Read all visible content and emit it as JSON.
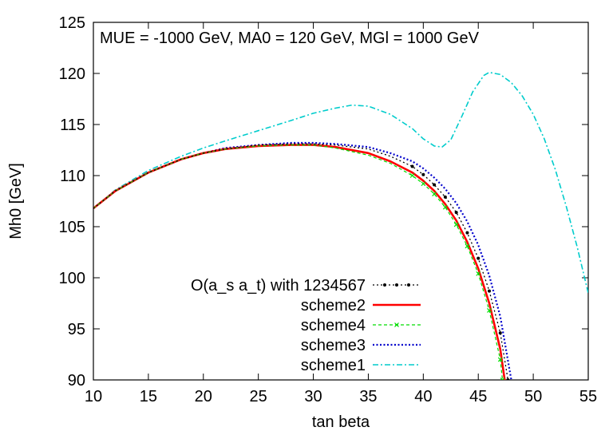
{
  "chart_data": {
    "type": "line",
    "title": "",
    "annotation": "MUE = -1000 GeV, MA0 = 120 GeV, MGl = 1000 GeV",
    "xlabel": "tan beta",
    "ylabel": "Mh0 [GeV]",
    "xlim": [
      10,
      55
    ],
    "ylim": [
      90,
      125
    ],
    "xticks": [
      10,
      15,
      20,
      25,
      30,
      35,
      40,
      45,
      50,
      55
    ],
    "yticks": [
      90,
      95,
      100,
      105,
      110,
      115,
      120,
      125
    ],
    "grid": false,
    "legend_position": "bottom-left",
    "series": [
      {
        "name": "O(a_s a_t) with 1234567",
        "color": "#000000",
        "style": "dotted-points",
        "x": [
          10,
          12,
          15,
          18,
          20,
          22,
          25,
          28,
          30,
          32,
          35,
          37,
          39,
          40,
          41,
          42,
          43,
          44,
          45,
          46,
          47,
          47.7
        ],
        "y": [
          106.8,
          108.5,
          110.3,
          111.6,
          112.2,
          112.6,
          113.0,
          113.1,
          113.1,
          113.0,
          112.6,
          111.9,
          110.9,
          110.1,
          109.1,
          107.9,
          106.4,
          104.4,
          101.9,
          98.7,
          94.6,
          90.0
        ]
      },
      {
        "name": "scheme2",
        "color": "#ff0000",
        "style": "solid",
        "x": [
          10,
          12,
          15,
          18,
          20,
          22,
          25,
          28,
          30,
          32,
          35,
          37,
          39,
          40,
          41,
          42,
          43,
          44,
          45,
          46,
          47,
          47.4
        ],
        "y": [
          106.8,
          108.5,
          110.3,
          111.6,
          112.2,
          112.6,
          112.9,
          113.0,
          113.0,
          112.8,
          112.2,
          111.4,
          110.3,
          109.5,
          108.5,
          107.2,
          105.6,
          103.5,
          100.9,
          97.5,
          93.0,
          90.0
        ]
      },
      {
        "name": "scheme4",
        "color": "#00dd00",
        "style": "dashed-points",
        "x": [
          10,
          12,
          15,
          18,
          20,
          22,
          25,
          28,
          30,
          32,
          35,
          37,
          39,
          40,
          41,
          42,
          43,
          44,
          45,
          46,
          47,
          47.2
        ],
        "y": [
          106.8,
          108.5,
          110.3,
          111.6,
          112.2,
          112.6,
          112.9,
          113.0,
          113.0,
          112.7,
          112.0,
          111.2,
          110.0,
          109.2,
          108.2,
          106.9,
          105.2,
          103.1,
          100.4,
          96.8,
          92.0,
          90.0
        ]
      },
      {
        "name": "scheme3",
        "color": "#0000cc",
        "style": "dotted",
        "x": [
          10,
          12,
          15,
          18,
          20,
          22,
          25,
          28,
          30,
          32,
          35,
          37,
          39,
          40,
          41,
          42,
          43,
          44,
          45,
          46,
          47,
          48.0
        ],
        "y": [
          106.8,
          108.5,
          110.3,
          111.6,
          112.2,
          112.7,
          113.0,
          113.2,
          113.2,
          113.1,
          112.8,
          112.2,
          111.4,
          110.7,
          109.8,
          108.7,
          107.3,
          105.5,
          103.2,
          100.2,
          96.2,
          90.0
        ]
      },
      {
        "name": "scheme1",
        "color": "#00cccc",
        "style": "dash-dot",
        "x": [
          10,
          12,
          15,
          18,
          20,
          22,
          25,
          28,
          30,
          32,
          33.5,
          35,
          37,
          39,
          40,
          41,
          41.7,
          42.5,
          43.5,
          44.5,
          45.5,
          46,
          47,
          48,
          49,
          50,
          51,
          52,
          53,
          54,
          55
        ],
        "y": [
          106.8,
          108.6,
          110.5,
          111.9,
          112.7,
          113.4,
          114.4,
          115.4,
          116.1,
          116.6,
          116.9,
          116.8,
          116.0,
          114.6,
          113.6,
          112.9,
          112.8,
          113.5,
          115.8,
          118.2,
          119.8,
          120.1,
          119.9,
          119.1,
          117.8,
          116.0,
          113.6,
          110.6,
          107.0,
          103.0,
          98.5
        ]
      }
    ]
  }
}
